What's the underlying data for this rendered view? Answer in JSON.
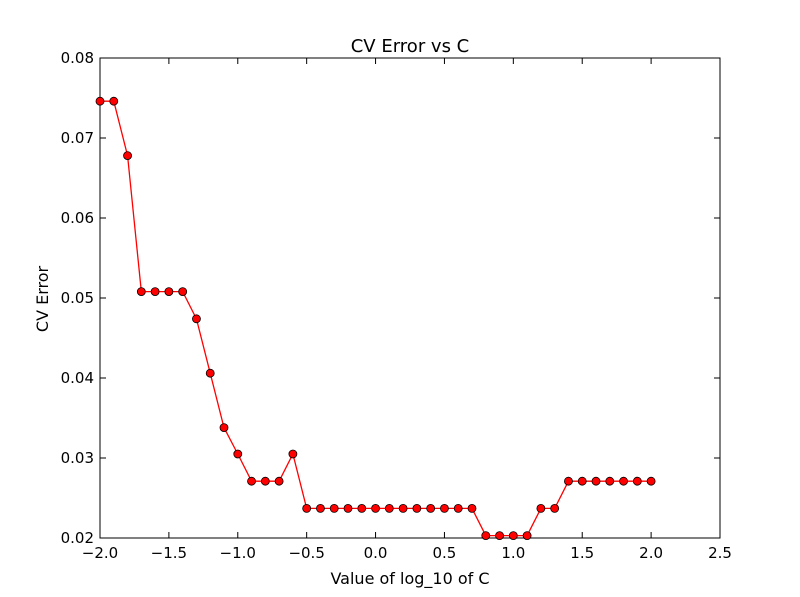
{
  "chart_data": {
    "type": "line",
    "title": "CV Error vs C",
    "xlabel": "Value of log_10 of C",
    "ylabel": "CV Error",
    "xlim": [
      -2.0,
      2.5
    ],
    "ylim": [
      0.02,
      0.08
    ],
    "x_ticks": [
      "−2.0",
      "−1.5",
      "−1.0",
      "−0.5",
      "0.0",
      "0.5",
      "1.0",
      "1.5",
      "2.0",
      "2.5"
    ],
    "y_ticks": [
      "0.02",
      "0.03",
      "0.04",
      "0.05",
      "0.06",
      "0.07",
      "0.08"
    ],
    "grid": false,
    "series": [
      {
        "color": "#ff0000",
        "marker": "circle",
        "x": [
          -2.0,
          -1.9,
          -1.8,
          -1.7,
          -1.6,
          -1.5,
          -1.4,
          -1.3,
          -1.2,
          -1.1,
          -1.0,
          -0.9,
          -0.8,
          -0.7,
          -0.6,
          -0.5,
          -0.4,
          -0.3,
          -0.2,
          -0.1,
          0.0,
          0.1,
          0.2,
          0.3,
          0.4,
          0.5,
          0.6,
          0.7,
          0.8,
          0.9,
          1.0,
          1.1,
          1.2,
          1.3,
          1.4,
          1.5,
          1.6,
          1.7,
          1.8,
          1.9,
          2.0
        ],
        "y": [
          0.0746,
          0.0746,
          0.0678,
          0.0508,
          0.0508,
          0.0508,
          0.0508,
          0.0474,
          0.0406,
          0.0338,
          0.0305,
          0.0271,
          0.0271,
          0.0271,
          0.0305,
          0.0237,
          0.0237,
          0.0237,
          0.0237,
          0.0237,
          0.0237,
          0.0237,
          0.0237,
          0.0237,
          0.0237,
          0.0237,
          0.0237,
          0.0237,
          0.0203,
          0.0203,
          0.0203,
          0.0203,
          0.0237,
          0.0237,
          0.0271,
          0.0271,
          0.0271,
          0.0271,
          0.0271,
          0.0271,
          0.0271
        ]
      }
    ]
  }
}
